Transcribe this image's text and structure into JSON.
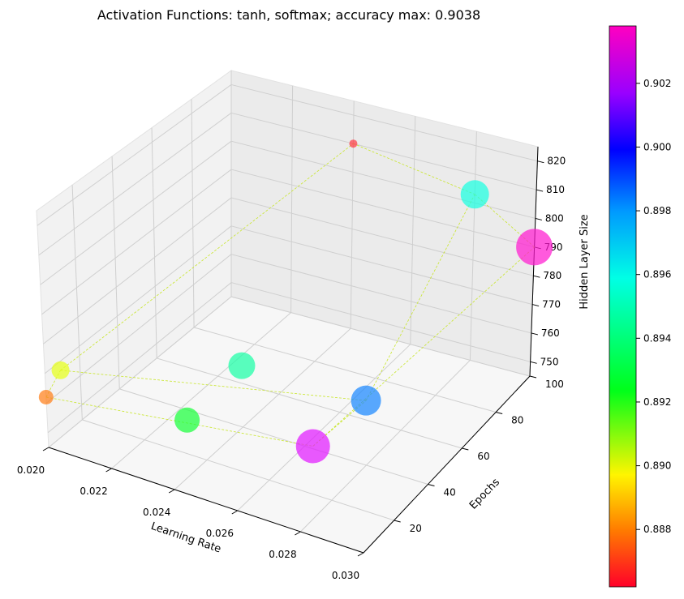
{
  "chart_data": {
    "type": "scatter",
    "projection": "3d",
    "title": "Activation Functions: tanh, softmax; accuracy max: 0.9038",
    "xlabel": "Learning Rate",
    "ylabel": "Epochs",
    "zlabel": "Hidden Layer Size",
    "xlim": [
      0.02,
      0.03
    ],
    "ylim": [
      2,
      100
    ],
    "zlim": [
      745,
      825
    ],
    "x_ticks": [
      "0.020",
      "0.022",
      "0.024",
      "0.026",
      "0.028",
      "0.030"
    ],
    "y_ticks": [
      "20",
      "40",
      "60",
      "80",
      "100"
    ],
    "z_ticks": [
      "750",
      "760",
      "770",
      "780",
      "790",
      "800",
      "810",
      "820"
    ],
    "grid": true,
    "colorbar": {
      "colormap": "gist_rainbow",
      "range": [
        0.8862,
        0.9038
      ],
      "ticks": [
        "0.888",
        "0.890",
        "0.892",
        "0.894",
        "0.896",
        "0.898",
        "0.900",
        "0.902"
      ]
    },
    "connector_color": "#c8e62a",
    "points": [
      {
        "x": 0.02,
        "y": 2,
        "z": 762,
        "accuracy": 0.8875,
        "marker_size": 18,
        "color": "#ff7f1a"
      },
      {
        "x": 0.02,
        "y": 10,
        "z": 767,
        "accuracy": 0.8905,
        "marker_size": 22,
        "color": "#e6ff1a"
      },
      {
        "x": 0.024,
        "y": 10,
        "z": 764,
        "accuracy": 0.8935,
        "marker_size": 31,
        "color": "#1aff3c"
      },
      {
        "x": 0.024,
        "y": 40,
        "z": 766,
        "accuracy": 0.8955,
        "marker_size": 33,
        "color": "#1affa6"
      },
      {
        "x": 0.028,
        "y": 10,
        "z": 769,
        "accuracy": 0.903,
        "marker_size": 42,
        "color": "#e21aff"
      },
      {
        "x": 0.028,
        "y": 40,
        "z": 767,
        "accuracy": 0.8985,
        "marker_size": 37,
        "color": "#1a88ff"
      },
      {
        "x": 0.024,
        "y": 100,
        "z": 810,
        "accuracy": 0.8865,
        "marker_size": 10,
        "color": "#ff3c46"
      },
      {
        "x": 0.028,
        "y": 100,
        "z": 803,
        "accuracy": 0.8965,
        "marker_size": 35,
        "color": "#1affe0"
      },
      {
        "x": 0.03,
        "y": 100,
        "z": 790,
        "accuracy": 0.9038,
        "marker_size": 45,
        "color": "#ff1ad0"
      }
    ],
    "connections": [
      [
        0,
        4
      ],
      [
        1,
        5
      ],
      [
        0,
        1
      ],
      [
        4,
        5
      ],
      [
        1,
        6
      ],
      [
        6,
        7
      ],
      [
        7,
        8
      ],
      [
        5,
        7
      ],
      [
        4,
        8
      ]
    ]
  }
}
